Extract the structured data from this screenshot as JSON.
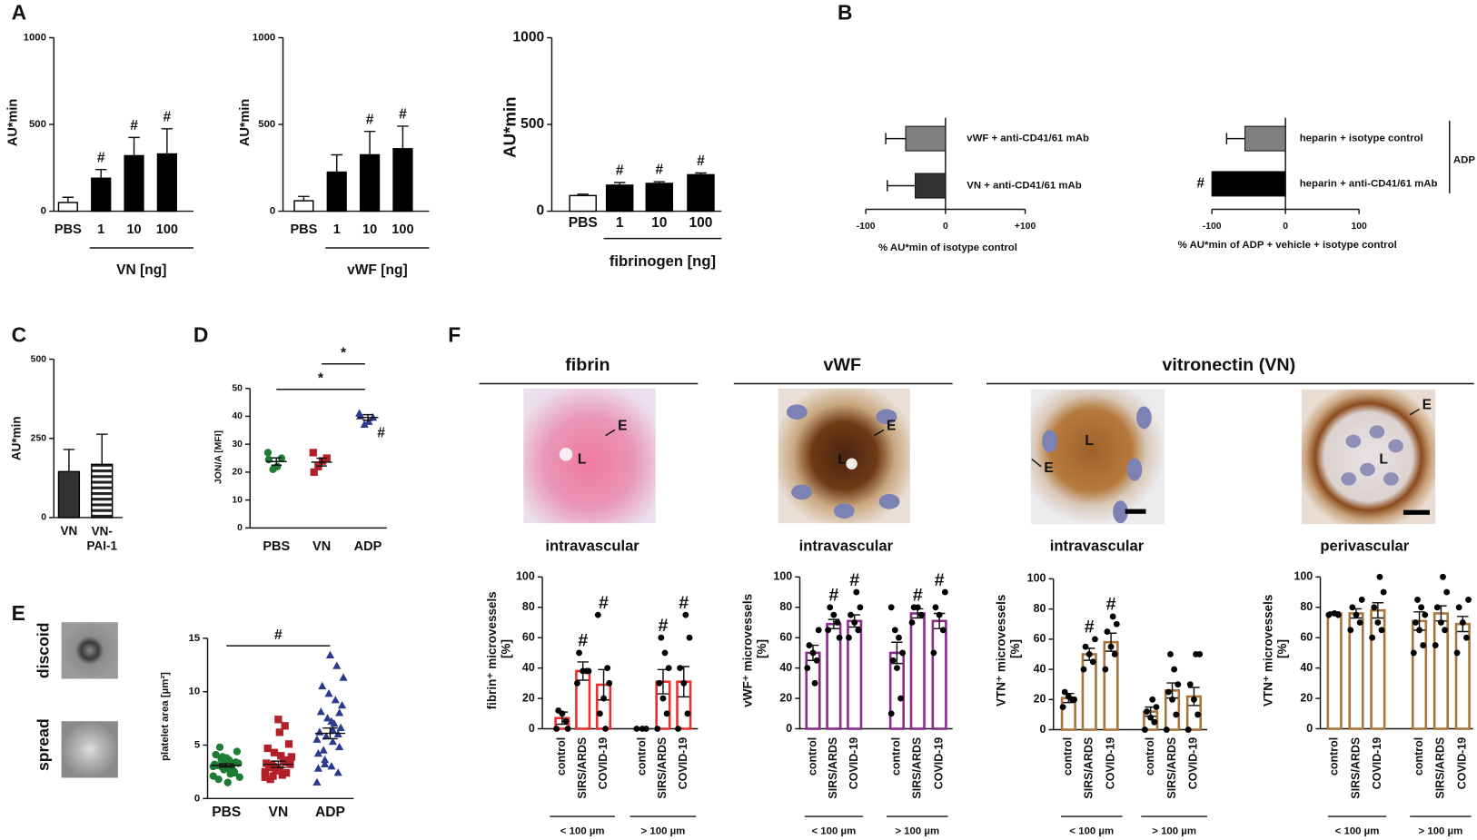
{
  "chart_data": [
    {
      "panel": "A",
      "type": "bar",
      "ylabel": "AU*min",
      "categories": [
        "PBS",
        "1",
        "10",
        "100"
      ],
      "values": [
        50,
        190,
        320,
        330
      ],
      "errors": [
        30,
        50,
        105,
        145
      ],
      "colors": [
        "#ffffff",
        "#000000",
        "#000000",
        "#000000"
      ],
      "color": "#000000",
      "ylim": [
        0,
        1000
      ],
      "yticks": [
        0,
        500,
        1000
      ],
      "annotations": [
        null,
        "#",
        "#",
        "#"
      ],
      "group_labels": [
        "VN [ng]"
      ]
    },
    {
      "type": "bar",
      "ylabel": "AU*min",
      "categories": [
        "PBS",
        "1",
        "10",
        "100"
      ],
      "values": [
        60,
        225,
        325,
        360
      ],
      "errors": [
        25,
        100,
        135,
        130
      ],
      "colors": [
        "#ffffff",
        "#000000",
        "#000000",
        "#000000"
      ],
      "color": "#000000",
      "ylim": [
        0,
        1000
      ],
      "yticks": [
        0,
        500,
        1000
      ],
      "annotations": [
        null,
        null,
        "#",
        "#"
      ],
      "group_labels": [
        "vWF [ng]"
      ]
    },
    {
      "type": "bar",
      "ylabel": "AU*min",
      "categories": [
        "PBS",
        "1",
        "10",
        "100"
      ],
      "values": [
        90,
        150,
        160,
        210
      ],
      "errors": [
        8,
        15,
        10,
        10
      ],
      "colors": [
        "#ffffff",
        "#000000",
        "#000000",
        "#000000"
      ],
      "color": "#000000",
      "ylim": [
        0,
        1000
      ],
      "yticks": [
        0,
        500,
        1000
      ],
      "annotations": [
        null,
        "#",
        "#",
        "#"
      ],
      "group_labels": [
        "fibrinogen [ng]"
      ]
    },
    {
      "panel": "B",
      "type": "hbar",
      "categories": [
        "vWF + anti-CD41/61 mAb",
        "VN + anti-CD41/61 mAb"
      ],
      "values": [
        -50,
        -38
      ],
      "errors": [
        25,
        35
      ],
      "colors": [
        "#7f7f7f",
        "#333333"
      ],
      "xlim": [
        -100,
        100
      ],
      "xticks": [
        -100,
        0,
        {
          "value": 100,
          "label": "+100"
        }
      ],
      "xlabel": "% AU*min of isotype control",
      "annotations": [
        null,
        null
      ]
    },
    {
      "type": "hbar",
      "categories": [
        "heparin + isotype control",
        "heparin + anti-CD41/61 mAb"
      ],
      "values": [
        -55,
        -100
      ],
      "errors": [
        25,
        0
      ],
      "colors": [
        "#7f7f7f",
        "#000000"
      ],
      "xlim": [
        -100,
        100
      ],
      "xticks": [
        -100,
        0,
        100
      ],
      "xlabel": "% AU*min of ADP + vehicle + isotype control",
      "annotations": [
        null,
        "#"
      ],
      "side_label": "ADP"
    },
    {
      "panel": "C",
      "type": "bar",
      "ylabel": "AU*min",
      "categories": [
        "VN",
        "VN-PAI-1"
      ],
      "values": [
        145,
        168
      ],
      "errors": [
        70,
        95
      ],
      "colors": [
        "#333333",
        "#ffffff"
      ],
      "hatch": [
        false,
        true
      ],
      "color": "#000000",
      "ylim": [
        0,
        500
      ],
      "yticks": [
        0,
        250,
        500
      ]
    },
    {
      "panel": "D",
      "type": "dot",
      "ylabel": "JON/A [MFI]",
      "categories": [
        "PBS",
        "VN",
        "ADP"
      ],
      "points": [
        [
          27,
          25,
          22,
          21,
          24.5
        ],
        [
          27,
          25,
          24,
          22,
          20
        ],
        [
          41,
          39.5,
          38,
          37,
          40
        ]
      ],
      "means": [
        23.8,
        23.6,
        39.6
      ],
      "sems": [
        1.3,
        1.4,
        1.0
      ],
      "colors": [
        "#1e7b34",
        "#b3202a",
        "#2b3a8f"
      ],
      "markers": [
        "circle",
        "square",
        "triangle"
      ],
      "ylim": [
        0,
        50
      ],
      "yticks": [
        0,
        10,
        20,
        30,
        40,
        50
      ],
      "annotations": [
        null,
        null,
        "#"
      ],
      "brackets": [
        "*",
        "*"
      ]
    },
    {
      "panel": "E",
      "type": "dot",
      "image_labels": [
        "spread",
        "discoid"
      ],
      "ylabel": "platelet area [µm²]",
      "categories": [
        "PBS",
        "VN",
        "ADP"
      ],
      "points": [
        [
          2.1,
          2.5,
          2.8,
          3.0,
          3.2,
          3.4,
          3.6,
          3.9,
          4.1,
          4.4,
          2.3,
          2.7,
          3.1,
          3.3,
          2.9,
          3.5,
          1.8,
          2.0,
          2.6,
          3.8,
          4.8,
          3.0,
          2.4,
          1.5,
          3.7
        ],
        [
          2.0,
          2.4,
          2.7,
          3.0,
          3.3,
          3.6,
          4.0,
          4.3,
          4.7,
          5.1,
          2.2,
          2.6,
          2.9,
          3.2,
          3.5,
          2.8,
          1.8,
          3.9,
          6.8,
          7.4,
          3.1,
          2.5,
          3.4,
          6.2,
          2.1
        ],
        [
          1.5,
          2.4,
          3.0,
          3.6,
          4.2,
          4.8,
          5.3,
          5.8,
          6.2,
          6.6,
          7.0,
          7.5,
          8.1,
          8.7,
          9.2,
          9.8,
          10.5,
          11.3,
          12.4,
          13.4,
          4.5,
          5.5,
          6.0,
          7.2,
          3.2,
          2.8,
          8.0,
          6.4
        ]
      ],
      "means": [
        3.1,
        3.2,
        6.1
      ],
      "sems": [
        0.15,
        0.3,
        0.5
      ],
      "colors": [
        "#1e7b34",
        "#b3202a",
        "#2b3a8f"
      ],
      "markers": [
        "circle",
        "square",
        "triangle"
      ],
      "ylim": [
        0,
        15
      ],
      "yticks": [
        0,
        5,
        10,
        15
      ],
      "brackets": [
        "#"
      ]
    },
    {
      "panel": "F",
      "type": "bar",
      "heading": "fibrin",
      "image_labels": [
        "E",
        "L"
      ],
      "title": "intravascular",
      "ylabel": "fibrin⁺ microvessels [%]",
      "categories": [
        "control",
        "SIRS/ARDS",
        "COVID-19",
        "control",
        "SIRS/ARDS",
        "COVID-19"
      ],
      "values": [
        7,
        38,
        29,
        0,
        31,
        31
      ],
      "errors": [
        4,
        6,
        10,
        0,
        8,
        10
      ],
      "points": [
        [
          0,
          5,
          10,
          12,
          0
        ],
        [
          30,
          38,
          38,
          50,
          38
        ],
        [
          75,
          40,
          20,
          10,
          30,
          0
        ],
        [
          0,
          0,
          0
        ],
        [
          0,
          10,
          20,
          30,
          40,
          50,
          60
        ],
        [
          0,
          10,
          30,
          40,
          60,
          75
        ]
      ],
      "color": "#e8302f",
      "fill": "#ffffff",
      "ylim": [
        0,
        100
      ],
      "yticks": [
        0,
        20,
        40,
        60,
        80,
        100
      ],
      "annotations": [
        null,
        "#",
        "#",
        null,
        "#",
        "#"
      ],
      "group_labels": [
        "< 100 µm",
        "> 100 µm"
      ]
    },
    {
      "type": "bar",
      "heading": "vWF",
      "image_labels": [
        "E",
        "L"
      ],
      "title": "intravascular",
      "ylabel": "vWF⁺ microvessels [%]",
      "categories": [
        "control",
        "SIRS/ARDS",
        "COVID-19",
        "control",
        "SIRS/ARDS",
        "COVID-19"
      ],
      "values": [
        50,
        69,
        71,
        50,
        76,
        71
      ],
      "errors": [
        5,
        3,
        4,
        7,
        3,
        5
      ],
      "points": [
        [
          40,
          45,
          50,
          55,
          65,
          30
        ],
        [
          65,
          70,
          75,
          80,
          60
        ],
        [
          60,
          65,
          70,
          75,
          80,
          90
        ],
        [
          10,
          20,
          40,
          45,
          50,
          60,
          65,
          80
        ],
        [
          70,
          75,
          80,
          80
        ],
        [
          50,
          65,
          75,
          80,
          90
        ]
      ],
      "color": "#8b2b8e",
      "fill": "#ffffff",
      "ylim": [
        0,
        100
      ],
      "yticks": [
        0,
        20,
        40,
        60,
        80,
        100
      ],
      "annotations": [
        null,
        "#",
        "#",
        null,
        "#",
        "#"
      ],
      "group_labels": [
        "< 100 µm",
        "> 100 µm"
      ]
    },
    {
      "type": "bar",
      "heading": "vitronectin (VN)",
      "image_labels": [
        "L",
        "E"
      ],
      "title": "intravascular",
      "ylabel": "VTN⁺ microvessels [%]",
      "categories": [
        "control",
        "SIRS/ARDS",
        "COVID-19",
        "control",
        "SIRS/ARDS",
        "COVID-19"
      ],
      "values": [
        21,
        50,
        58,
        12,
        26,
        22
      ],
      "errors": [
        3,
        4,
        6,
        3,
        5,
        6
      ],
      "points": [
        [
          15,
          20,
          22,
          25,
          20
        ],
        [
          40,
          45,
          50,
          55,
          60
        ],
        [
          40,
          50,
          55,
          65,
          70,
          75
        ],
        [
          0,
          5,
          8,
          12,
          15,
          20
        ],
        [
          0,
          10,
          20,
          25,
          30,
          40,
          50
        ],
        [
          0,
          10,
          20,
          30,
          50,
          50
        ]
      ],
      "color": "#a8743a",
      "fill": "#ffffff",
      "ylim": [
        0,
        100
      ],
      "yticks": [
        0,
        20,
        40,
        60,
        80,
        100
      ],
      "annotations": [
        null,
        "#",
        "#",
        null,
        null,
        null
      ],
      "group_labels": [
        "< 100 µm",
        "> 100 µm"
      ]
    },
    {
      "type": "bar",
      "image_labels": [
        "E",
        "L"
      ],
      "title": "perivascular",
      "ylabel": "VTN⁺ microvessels [%]",
      "categories": [
        "control",
        "SIRS/ARDS",
        "COVID-19",
        "control",
        "SIRS/ARDS",
        "COVID-19"
      ],
      "values": [
        76,
        76,
        78,
        71,
        76,
        69
      ],
      "errors": [
        1,
        3,
        5,
        6,
        5,
        5
      ],
      "points": [
        [
          75,
          75,
          76
        ],
        [
          65,
          70,
          75,
          80,
          85
        ],
        [
          60,
          65,
          70,
          80,
          90,
          100
        ],
        [
          50,
          55,
          65,
          70,
          75,
          80,
          85
        ],
        [
          55,
          65,
          70,
          80,
          90,
          100
        ],
        [
          50,
          60,
          70,
          80,
          85
        ]
      ],
      "color": "#a8743a",
      "fill": "#ffffff",
      "ylim": [
        0,
        100
      ],
      "yticks": [
        0,
        20,
        40,
        60,
        80,
        100
      ],
      "annotations": [
        null,
        null,
        null,
        null,
        null,
        null
      ],
      "group_labels": [
        "< 100 µm",
        "> 100 µm"
      ]
    }
  ]
}
